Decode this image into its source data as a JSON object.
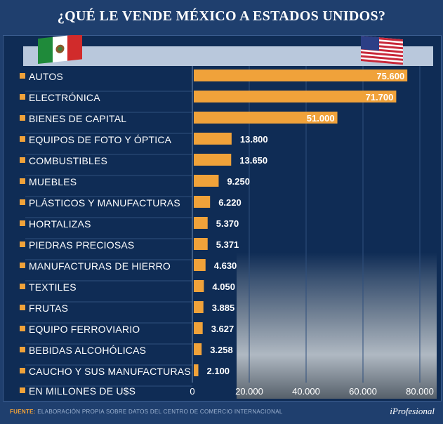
{
  "title": "¿QUÉ LE VENDE MÉXICO A ESTADOS UNIDOS?",
  "colors": {
    "bar": "#f0a23a",
    "background": "#0f2c55",
    "frame": "#1f3f6e",
    "bullet": "#f0a23a"
  },
  "flags": {
    "left": "mexico-flag",
    "right": "usa-flag"
  },
  "chart_data": {
    "type": "bar",
    "orientation": "horizontal",
    "title": "¿QUÉ LE VENDE MÉXICO A ESTADOS UNIDOS?",
    "categories": [
      "AUTOS",
      "ELECTRÓNICA",
      "BIENES DE CAPITAL",
      "EQUIPOS DE FOTO Y ÓPTICA",
      "COMBUSTIBLES",
      "MUEBLES",
      "PLÁSTICOS Y MANUFACTURAS",
      "HORTALIZAS",
      "PIEDRAS PRECIOSAS",
      "MANUFACTURAS DE HIERRO",
      "TEXTILES",
      "FRUTAS",
      "EQUIPO FERROVIARIO",
      "BEBIDAS ALCOHÓLICAS",
      "CAUCHO Y SUS MANUFACTURAS"
    ],
    "values": [
      75600,
      71700,
      51000,
      13800,
      13650,
      9250,
      6220,
      5370,
      5371,
      4630,
      4050,
      3885,
      3627,
      3258,
      2100
    ],
    "value_labels": [
      "75.600",
      "71.700",
      "51.000",
      "13.800",
      "13.650",
      "9.250",
      "6.220",
      "5.370",
      "5.371",
      "4.630",
      "4.050",
      "3.885",
      "3.627",
      "3.258",
      "2.100"
    ],
    "xlim": [
      0,
      80000
    ],
    "ticks": [
      0,
      20000,
      40000,
      60000,
      80000
    ],
    "tick_labels": [
      "0",
      "20.000",
      "40.000",
      "60.000",
      "80.000"
    ],
    "xlabel": "EN MILLONES DE U$S",
    "grid": true
  },
  "footer": {
    "source_label": "FUENTE:",
    "source_text": "ELABORACIÓN PROPIA SOBRE DATOS DEL CENTRO DE COMERCIO INTERNACIONAL",
    "brand": "iProfesional"
  }
}
